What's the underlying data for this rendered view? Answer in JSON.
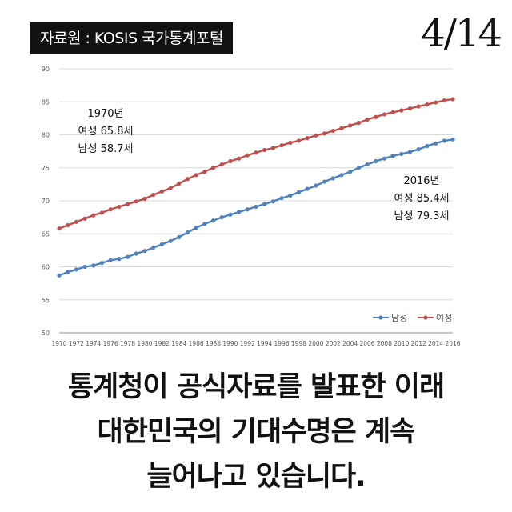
{
  "header": {
    "source": "자료원 : KOSIS 국가통계포털",
    "page": "4/14"
  },
  "annotations": {
    "start": {
      "year": "1970년",
      "female": "여성 65.8세",
      "male": "남성 58.7세"
    },
    "end": {
      "year": "2016년",
      "female": "여성 85.4세",
      "male": "남성 79.3세"
    }
  },
  "caption": [
    "통계청이 공식자료를 발표한 이래",
    "대한민국의 기대수명은 계속",
    "늘어나고 있습니다."
  ],
  "chart_data": {
    "type": "line",
    "x": [
      1970,
      1971,
      1972,
      1973,
      1974,
      1975,
      1976,
      1977,
      1978,
      1979,
      1980,
      1981,
      1982,
      1983,
      1984,
      1985,
      1986,
      1987,
      1988,
      1989,
      1990,
      1991,
      1992,
      1993,
      1994,
      1995,
      1996,
      1997,
      1998,
      1999,
      2000,
      2001,
      2002,
      2003,
      2004,
      2005,
      2006,
      2007,
      2008,
      2009,
      2010,
      2011,
      2012,
      2013,
      2014,
      2015,
      2016
    ],
    "xticks": [
      "1970",
      "1972",
      "1974",
      "1976",
      "1978",
      "1980",
      "1982",
      "1984",
      "1986",
      "1988",
      "1990",
      "1992",
      "1994",
      "1996",
      "1998",
      "2000",
      "2002",
      "2004",
      "2006",
      "2008",
      "2010",
      "2012",
      "2014",
      "2016"
    ],
    "ylim": [
      50,
      90
    ],
    "yticks": [
      "50",
      "55",
      "60",
      "65",
      "70",
      "75",
      "80",
      "85",
      "90"
    ],
    "legend": "bottom-right",
    "series": [
      {
        "name": "남성",
        "color": "#4f81bd",
        "values": [
          58.7,
          59.2,
          59.6,
          60.0,
          60.2,
          60.6,
          61.0,
          61.2,
          61.5,
          62.0,
          62.4,
          62.9,
          63.4,
          63.9,
          64.5,
          65.2,
          65.9,
          66.5,
          67.0,
          67.5,
          67.9,
          68.3,
          68.7,
          69.1,
          69.5,
          69.9,
          70.4,
          70.8,
          71.3,
          71.8,
          72.3,
          72.9,
          73.4,
          73.9,
          74.4,
          75.0,
          75.5,
          76.0,
          76.4,
          76.8,
          77.1,
          77.4,
          77.8,
          78.3,
          78.7,
          79.1,
          79.3
        ]
      },
      {
        "name": "여성",
        "color": "#c0504d",
        "values": [
          65.8,
          66.3,
          66.8,
          67.3,
          67.8,
          68.2,
          68.7,
          69.1,
          69.5,
          69.9,
          70.3,
          70.9,
          71.4,
          71.9,
          72.6,
          73.3,
          73.9,
          74.4,
          75.0,
          75.5,
          76.0,
          76.4,
          76.9,
          77.3,
          77.7,
          78.0,
          78.4,
          78.8,
          79.1,
          79.5,
          79.9,
          80.2,
          80.6,
          81.0,
          81.4,
          81.8,
          82.3,
          82.7,
          83.1,
          83.4,
          83.7,
          84.0,
          84.3,
          84.6,
          84.9,
          85.2,
          85.4
        ]
      }
    ]
  }
}
